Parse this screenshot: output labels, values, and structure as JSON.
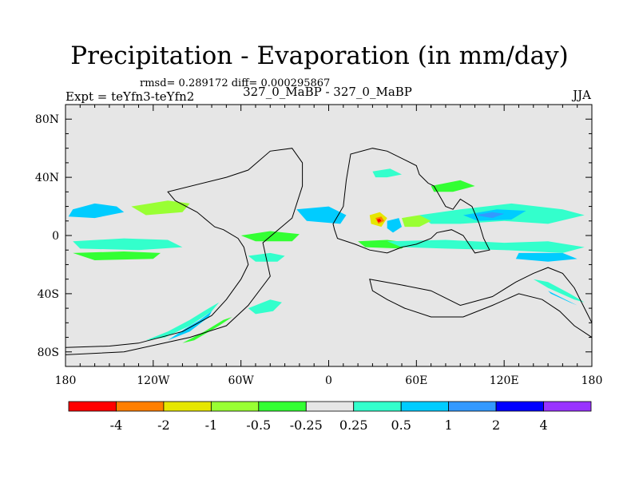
{
  "header": {
    "title": "Precipitation - Evaporation (in mm/day)",
    "stats": "rmsd= 0.289172 diff= 0.000295867",
    "experiment": "Expt = teYfn3-teYfn2",
    "experiment_names": "327_0_MaBP - 327_0_MaBP",
    "season": "JJA"
  },
  "chart_data": {
    "type": "heatmap",
    "title": "Precipitation - Evaporation (in mm/day)",
    "subtitle": "rmsd= 0.289172 diff= 0.000295867",
    "xlabel": "",
    "ylabel": "",
    "xlim": [
      -180,
      180
    ],
    "ylim": [
      -90,
      90
    ],
    "x_ticks": [
      {
        "value": -180,
        "label": "180"
      },
      {
        "value": -120,
        "label": "120W"
      },
      {
        "value": -60,
        "label": "60W"
      },
      {
        "value": 0,
        "label": "0"
      },
      {
        "value": 60,
        "label": "60E"
      },
      {
        "value": 120,
        "label": "120E"
      },
      {
        "value": 180,
        "label": "180"
      }
    ],
    "y_ticks": [
      {
        "value": 80,
        "label": "80N"
      },
      {
        "value": 40,
        "label": "40N"
      },
      {
        "value": 0,
        "label": "0"
      },
      {
        "value": -40,
        "label": "40S"
      },
      {
        "value": -80,
        "label": "80S"
      }
    ],
    "background_color": "#e6e6e6",
    "colorbar": {
      "levels": [
        "-4",
        "-2",
        "-1",
        "-0.5",
        "-0.25",
        "0.25",
        "0.5",
        "1",
        "2",
        "4"
      ],
      "colors": [
        "#ff0000",
        "#ff7f00",
        "#e6e600",
        "#99ff33",
        "#33ff33",
        "#e6e6e6",
        "#33ffcc",
        "#00ccff",
        "#3399ff",
        "#0000ff",
        "#9933ff"
      ]
    },
    "regions": [
      {
        "name": "land-boundary-americas",
        "kind": "coastline",
        "lon_lat": [
          [
            -180,
            -77
          ],
          [
            -150,
            -76
          ],
          [
            -130,
            -74
          ],
          [
            -100,
            -66
          ],
          [
            -80,
            -55
          ],
          [
            -70,
            -44
          ],
          [
            -60,
            -30
          ],
          [
            -55,
            -20
          ],
          [
            -58,
            -8
          ],
          [
            -62,
            -2
          ],
          [
            -72,
            4
          ],
          [
            -78,
            6
          ],
          [
            -90,
            16
          ],
          [
            -105,
            24
          ],
          [
            -110,
            30
          ],
          [
            -70,
            40
          ],
          [
            -55,
            45
          ],
          [
            -40,
            58
          ],
          [
            -25,
            60
          ],
          [
            -18,
            50
          ],
          [
            -18,
            34
          ],
          [
            -25,
            12
          ],
          [
            -45,
            -5
          ],
          [
            -40,
            -28
          ],
          [
            -55,
            -48
          ],
          [
            -70,
            -62
          ],
          [
            -95,
            -70
          ],
          [
            -140,
            -80
          ],
          [
            -180,
            -82
          ]
        ]
      },
      {
        "name": "land-boundary-eurasia",
        "kind": "coastline",
        "lon_lat": [
          [
            3,
            8
          ],
          [
            10,
            20
          ],
          [
            12,
            38
          ],
          [
            15,
            56
          ],
          [
            30,
            60
          ],
          [
            40,
            58
          ],
          [
            52,
            52
          ],
          [
            60,
            48
          ],
          [
            62,
            42
          ],
          [
            68,
            36
          ],
          [
            72,
            34
          ],
          [
            80,
            20
          ],
          [
            85,
            18
          ],
          [
            90,
            25
          ],
          [
            98,
            20
          ],
          [
            103,
            8
          ],
          [
            106,
            -2
          ],
          [
            110,
            -10
          ],
          [
            100,
            -12
          ],
          [
            92,
            0
          ],
          [
            84,
            4
          ],
          [
            74,
            2
          ],
          [
            70,
            -2
          ],
          [
            60,
            -6
          ],
          [
            50,
            -8
          ],
          [
            40,
            -12
          ],
          [
            28,
            -10
          ],
          [
            18,
            -6
          ],
          [
            6,
            -2
          ],
          [
            4,
            4
          ]
        ]
      },
      {
        "name": "land-boundary-southern-continent",
        "kind": "coastline",
        "lon_lat": [
          [
            28,
            -30
          ],
          [
            50,
            -34
          ],
          [
            70,
            -38
          ],
          [
            90,
            -48
          ],
          [
            112,
            -42
          ],
          [
            128,
            -32
          ],
          [
            140,
            -26
          ],
          [
            150,
            -22
          ],
          [
            160,
            -26
          ],
          [
            168,
            -36
          ],
          [
            175,
            -50
          ],
          [
            180,
            -60
          ],
          [
            180,
            -70
          ],
          [
            168,
            -62
          ],
          [
            158,
            -52
          ],
          [
            146,
            -44
          ],
          [
            130,
            -40
          ],
          [
            112,
            -48
          ],
          [
            92,
            -56
          ],
          [
            70,
            -56
          ],
          [
            52,
            -50
          ],
          [
            40,
            -44
          ],
          [
            30,
            -38
          ]
        ]
      },
      {
        "name": "band-north-atlantic",
        "kind": "fill",
        "level_index": 7,
        "lon_lat": [
          [
            -175,
            18
          ],
          [
            -160,
            22
          ],
          [
            -145,
            20
          ],
          [
            -140,
            16
          ],
          [
            -160,
            12
          ],
          [
            -178,
            13
          ]
        ]
      },
      {
        "name": "band-north-atlantic-green",
        "kind": "fill",
        "level_index": 3,
        "lon_lat": [
          [
            -135,
            20
          ],
          [
            -110,
            24
          ],
          [
            -95,
            22
          ],
          [
            -100,
            16
          ],
          [
            -125,
            14
          ]
        ]
      },
      {
        "name": "band-tropical-west",
        "kind": "fill",
        "level_index": 6,
        "lon_lat": [
          [
            -175,
            -4
          ],
          [
            -140,
            -2
          ],
          [
            -110,
            -3
          ],
          [
            -100,
            -8
          ],
          [
            -130,
            -10
          ],
          [
            -170,
            -9
          ]
        ]
      },
      {
        "name": "band-tropical-west-green",
        "kind": "fill",
        "level_index": 4,
        "lon_lat": [
          [
            -175,
            -12
          ],
          [
            -140,
            -11
          ],
          [
            -115,
            -12
          ],
          [
            -120,
            -16
          ],
          [
            -160,
            -17
          ]
        ]
      },
      {
        "name": "band-south-arc-1",
        "kind": "fill",
        "level_index": 6,
        "lon_lat": [
          [
            -125,
            -72
          ],
          [
            -110,
            -66
          ],
          [
            -95,
            -58
          ],
          [
            -82,
            -50
          ],
          [
            -75,
            -46
          ],
          [
            -80,
            -52
          ],
          [
            -95,
            -62
          ],
          [
            -112,
            -70
          ]
        ]
      },
      {
        "name": "band-south-arc-2",
        "kind": "fill",
        "level_index": 7,
        "lon_lat": [
          [
            -110,
            -72
          ],
          [
            -98,
            -64
          ],
          [
            -88,
            -58
          ],
          [
            -80,
            -52
          ],
          [
            -82,
            -56
          ],
          [
            -95,
            -66
          ]
        ]
      },
      {
        "name": "band-south-arc-green",
        "kind": "fill",
        "level_index": 4,
        "lon_lat": [
          [
            -100,
            -74
          ],
          [
            -85,
            -66
          ],
          [
            -72,
            -58
          ],
          [
            -66,
            -56
          ],
          [
            -75,
            -62
          ],
          [
            -92,
            -72
          ]
        ]
      },
      {
        "name": "band-south-mid",
        "kind": "fill",
        "level_index": 6,
        "lon_lat": [
          [
            -55,
            -50
          ],
          [
            -40,
            -44
          ],
          [
            -32,
            -46
          ],
          [
            -38,
            -52
          ],
          [
            -50,
            -54
          ]
        ]
      },
      {
        "name": "band-central-blue",
        "kind": "fill",
        "level_index": 7,
        "lon_lat": [
          [
            -22,
            18
          ],
          [
            0,
            20
          ],
          [
            12,
            14
          ],
          [
            8,
            8
          ],
          [
            -15,
            10
          ]
        ]
      },
      {
        "name": "band-central-green",
        "kind": "fill",
        "level_index": 4,
        "lon_lat": [
          [
            -60,
            0
          ],
          [
            -40,
            3
          ],
          [
            -20,
            1
          ],
          [
            -25,
            -4
          ],
          [
            -50,
            -4
          ]
        ]
      },
      {
        "name": "band-central-cyan",
        "kind": "fill",
        "level_index": 6,
        "lon_lat": [
          [
            -55,
            -14
          ],
          [
            -40,
            -12
          ],
          [
            -30,
            -14
          ],
          [
            -35,
            -18
          ],
          [
            -50,
            -18
          ]
        ]
      },
      {
        "name": "band-indian-green",
        "kind": "fill",
        "level_index": 4,
        "lon_lat": [
          [
            20,
            -4
          ],
          [
            40,
            -3
          ],
          [
            55,
            -5
          ],
          [
            50,
            -9
          ],
          [
            25,
            -8
          ]
        ]
      },
      {
        "name": "band-indian-cyan",
        "kind": "fill",
        "level_index": 6,
        "lon_lat": [
          [
            40,
            -4
          ],
          [
            80,
            -3
          ],
          [
            120,
            -5
          ],
          [
            150,
            -4
          ],
          [
            175,
            -8
          ],
          [
            160,
            -12
          ],
          [
            120,
            -10
          ],
          [
            80,
            -9
          ],
          [
            50,
            -8
          ]
        ]
      },
      {
        "name": "band-equator-blue-east",
        "kind": "fill",
        "level_index": 7,
        "lon_lat": [
          [
            130,
            -12
          ],
          [
            160,
            -12
          ],
          [
            170,
            -16
          ],
          [
            150,
            -18
          ],
          [
            128,
            -16
          ]
        ]
      },
      {
        "name": "band-monsoon-cyan",
        "kind": "fill",
        "level_index": 6,
        "lon_lat": [
          [
            62,
            14
          ],
          [
            90,
            18
          ],
          [
            125,
            22
          ],
          [
            160,
            18
          ],
          [
            175,
            14
          ],
          [
            150,
            8
          ],
          [
            120,
            10
          ],
          [
            90,
            8
          ],
          [
            70,
            8
          ]
        ]
      },
      {
        "name": "band-monsoon-blue",
        "kind": "fill",
        "level_index": 7,
        "lon_lat": [
          [
            92,
            14
          ],
          [
            115,
            18
          ],
          [
            135,
            17
          ],
          [
            125,
            11
          ],
          [
            102,
            10
          ]
        ]
      },
      {
        "name": "band-monsoon-deep",
        "kind": "fill",
        "level_index": 8,
        "lon_lat": [
          [
            100,
            14
          ],
          [
            112,
            16
          ],
          [
            120,
            15
          ],
          [
            112,
            12
          ]
        ]
      },
      {
        "name": "band-africa-hotspot-yellow",
        "kind": "fill",
        "level_index": 2,
        "lon_lat": [
          [
            28,
            14
          ],
          [
            35,
            16
          ],
          [
            40,
            12
          ],
          [
            36,
            6
          ],
          [
            29,
            8
          ]
        ]
      },
      {
        "name": "band-africa-hotspot-orange",
        "kind": "fill",
        "level_index": 1,
        "lon_lat": [
          [
            32,
            12
          ],
          [
            36,
            13
          ],
          [
            38,
            10
          ],
          [
            34,
            8
          ]
        ]
      },
      {
        "name": "band-africa-hotspot-red",
        "kind": "fill",
        "level_index": 0,
        "lon_lat": [
          [
            33,
            11
          ],
          [
            35,
            11.5
          ],
          [
            36,
            10
          ],
          [
            34,
            9
          ]
        ]
      },
      {
        "name": "band-africa-blue-ring",
        "kind": "fill",
        "level_index": 7,
        "lon_lat": [
          [
            40,
            10
          ],
          [
            48,
            12
          ],
          [
            50,
            6
          ],
          [
            44,
            2
          ],
          [
            40,
            5
          ]
        ]
      },
      {
        "name": "band-arabia-green",
        "kind": "fill",
        "level_index": 3,
        "lon_lat": [
          [
            50,
            12
          ],
          [
            62,
            14
          ],
          [
            70,
            10
          ],
          [
            62,
            6
          ],
          [
            52,
            6
          ]
        ]
      },
      {
        "name": "band-south-east-cyan",
        "kind": "fill",
        "level_index": 6,
        "lon_lat": [
          [
            140,
            -30
          ],
          [
            150,
            -32
          ],
          [
            165,
            -40
          ],
          [
            175,
            -46
          ],
          [
            168,
            -44
          ],
          [
            150,
            -36
          ]
        ]
      },
      {
        "name": "band-south-east-blue",
        "kind": "fill",
        "level_index": 7,
        "lon_lat": [
          [
            150,
            -38
          ],
          [
            162,
            -44
          ],
          [
            170,
            -48
          ],
          [
            165,
            -46
          ],
          [
            152,
            -40
          ]
        ]
      },
      {
        "name": "band-north-east-green",
        "kind": "fill",
        "level_index": 4,
        "lon_lat": [
          [
            70,
            34
          ],
          [
            90,
            38
          ],
          [
            100,
            34
          ],
          [
            85,
            30
          ],
          [
            72,
            30
          ]
        ]
      },
      {
        "name": "band-north-central-cyan",
        "kind": "fill",
        "level_index": 6,
        "lon_lat": [
          [
            30,
            44
          ],
          [
            42,
            46
          ],
          [
            50,
            42
          ],
          [
            40,
            40
          ],
          [
            32,
            40
          ]
        ]
      }
    ]
  }
}
